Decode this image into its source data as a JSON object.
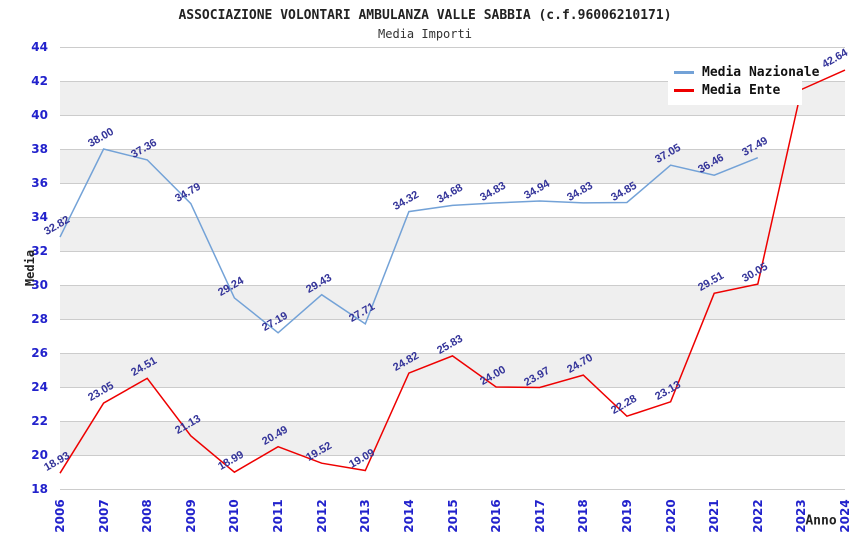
{
  "title": "ASSOCIAZIONE VOLONTARI AMBULANZA VALLE SABBIA (c.f.96006210171)",
  "subtitle": "Media Importi",
  "legend": {
    "items": [
      {
        "label": "Media Nazionale",
        "color": "#73a2d7"
      },
      {
        "label": "Media Ente",
        "color": "#ee0000"
      }
    ]
  },
  "axes": {
    "y_label": "Media",
    "x_label": "Anno",
    "y_ticks": [
      "18",
      "20",
      "22",
      "24",
      "26",
      "28",
      "30",
      "32",
      "34",
      "36",
      "38",
      "40",
      "42",
      "44"
    ],
    "x_ticks": [
      "2006",
      "2007",
      "2008",
      "2009",
      "2010",
      "2011",
      "2012",
      "2013",
      "2014",
      "2015",
      "2016",
      "2017",
      "2018",
      "2019",
      "2020",
      "2021",
      "2022",
      "2023",
      "2024"
    ]
  },
  "colors": {
    "tick_label": "#2222cc",
    "data_label": "#333399",
    "gridline": "#cccccc",
    "band_gray": "#efefef",
    "band_white": "#ffffff",
    "series_nazionale": "#73a2d7",
    "series_ente": "#ee0000"
  },
  "chart_data": {
    "type": "line",
    "title": "ASSOCIAZIONE VOLONTARI AMBULANZA VALLE SABBIA (c.f.96006210171)",
    "subtitle": "Media Importi",
    "xlabel": "Anno",
    "ylabel": "Media",
    "xlim": [
      2006,
      2024
    ],
    "ylim": [
      18,
      44
    ],
    "y_tick_step": 2,
    "grid": "horizontal-with-alternating-bands",
    "legend_position": "top-right-inside",
    "series": [
      {
        "name": "Media Nazionale",
        "color": "#73a2d7",
        "x": [
          2006,
          2007,
          2008,
          2009,
          2010,
          2011,
          2012,
          2013,
          2014,
          2015,
          2016,
          2017,
          2018,
          2019,
          2020,
          2021,
          2022
        ],
        "values": [
          32.82,
          38.0,
          37.36,
          34.79,
          29.24,
          27.19,
          29.43,
          27.71,
          34.32,
          34.68,
          34.83,
          34.94,
          34.83,
          34.85,
          37.05,
          36.46,
          37.49
        ],
        "labels": [
          "32.82",
          "38.00",
          "37.36",
          "34.79",
          "29.24",
          "27.19",
          "29.43",
          "27.71",
          "34.32",
          "34.68",
          "34.83",
          "34.94",
          "34.83",
          "34.85",
          "37.05",
          "36.46",
          "37.49"
        ]
      },
      {
        "name": "Media Ente",
        "color": "#ee0000",
        "x": [
          2006,
          2007,
          2008,
          2009,
          2010,
          2011,
          2012,
          2013,
          2014,
          2015,
          2016,
          2017,
          2018,
          2019,
          2020,
          2021,
          2022,
          2023,
          2024
        ],
        "values": [
          18.93,
          23.05,
          24.51,
          21.13,
          18.99,
          20.49,
          19.52,
          19.09,
          24.82,
          25.83,
          24.0,
          23.97,
          24.7,
          22.28,
          23.13,
          29.51,
          30.05,
          41.5,
          42.64
        ],
        "labels": [
          "18.93",
          "23.05",
          "24.51",
          "21.13",
          "18.99",
          "20.49",
          "19.52",
          "19.09",
          "24.82",
          "25.83",
          "24.00",
          "23.97",
          "24.70",
          "22.28",
          "23.13",
          "29.51",
          "30.05",
          "",
          "42.64"
        ]
      }
    ]
  }
}
